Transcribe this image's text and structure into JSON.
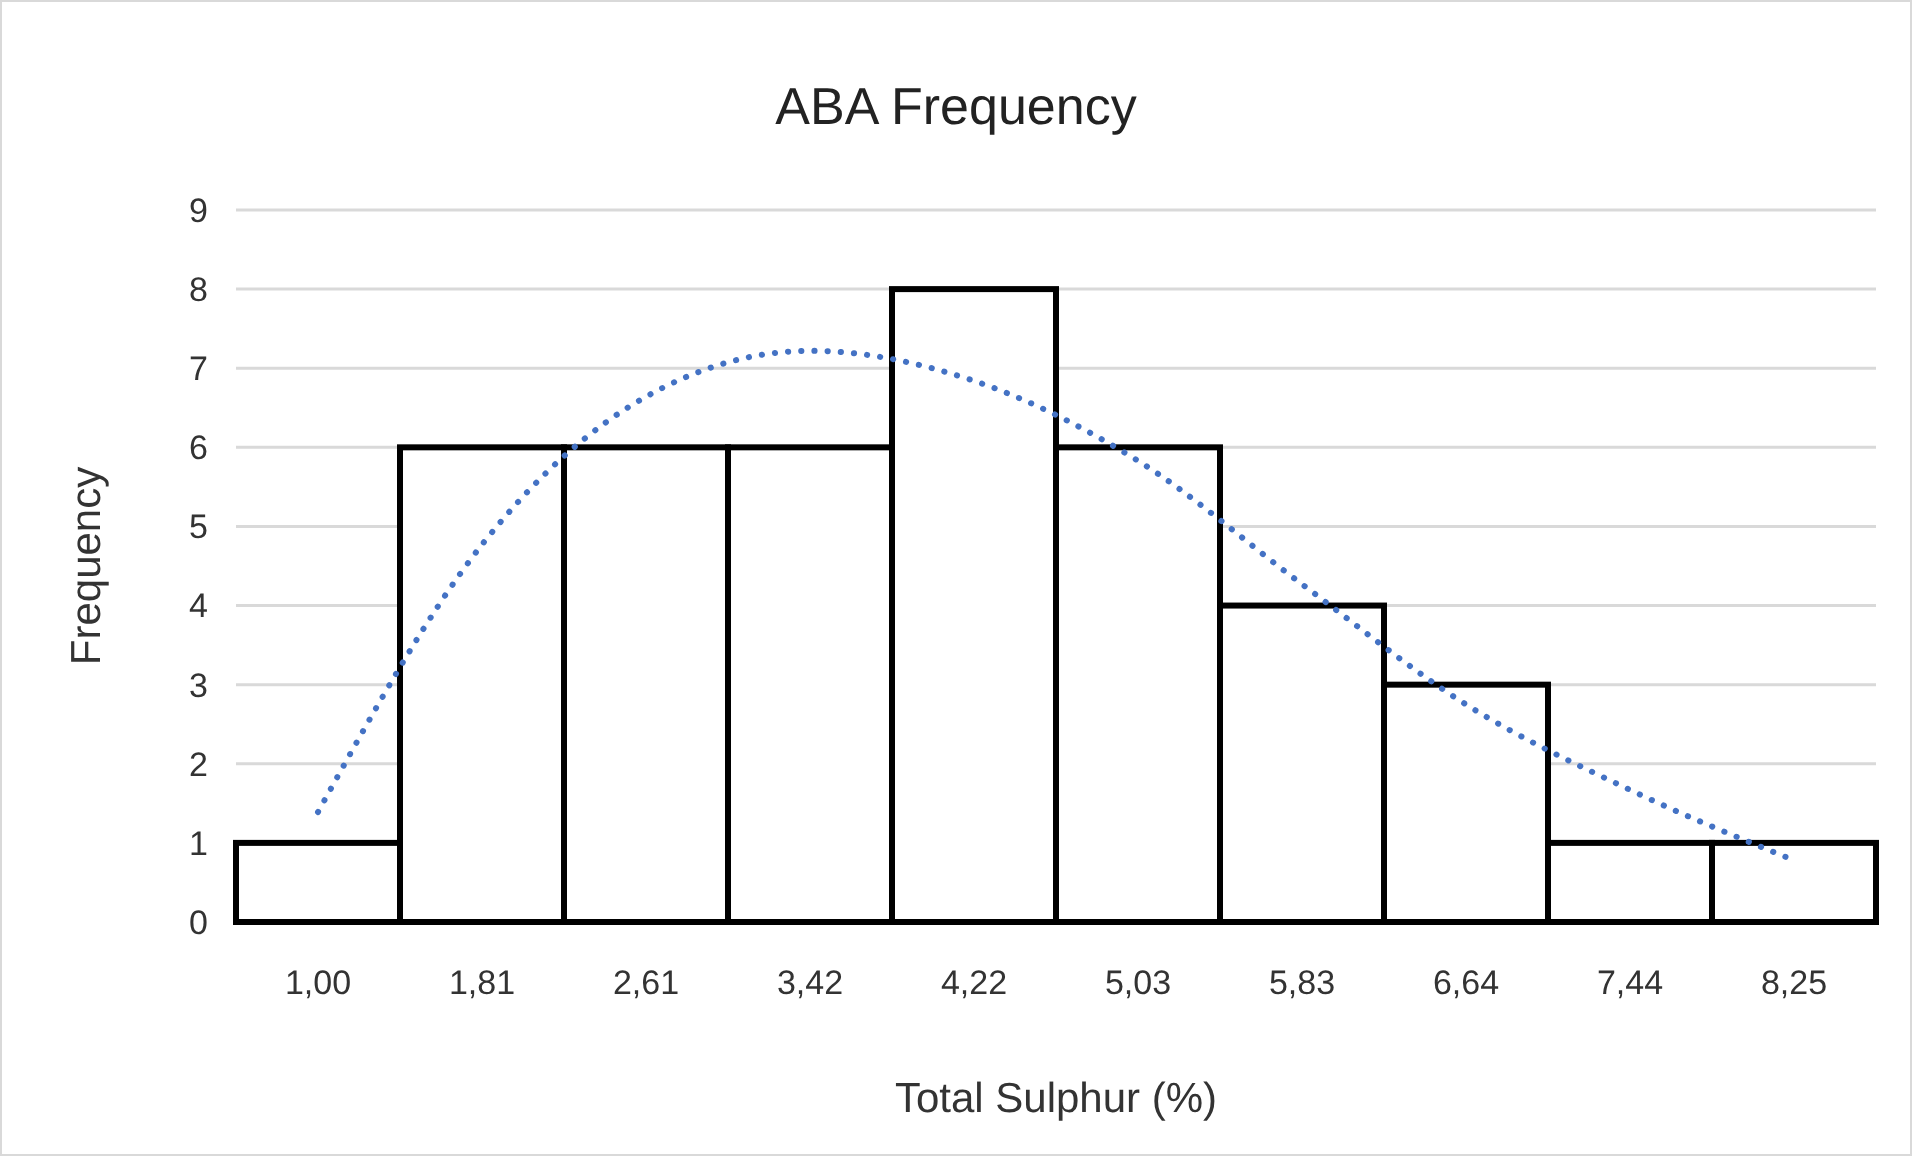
{
  "chart_data": {
    "type": "bar",
    "title": "ABA Frequency",
    "xlabel": "Total Sulphur (%)",
    "ylabel": "Frequency",
    "categories": [
      "1,00",
      "1,81",
      "2,61",
      "3,42",
      "4,22",
      "5,03",
      "5,83",
      "6,64",
      "7,44",
      "8,25"
    ],
    "series": [
      {
        "color": "#000000",
        "values": [
          1,
          6,
          6,
          6,
          8,
          6,
          4,
          3,
          1,
          1
        ]
      },
      {
        "type": "line",
        "color": "#4472c4",
        "line_style": "dotted",
        "marker": "none",
        "values": [
          1.39,
          4.77,
          6.64,
          7.22,
          6.84,
          5.83,
          4.27,
          2.75,
          1.67,
          0.78
        ]
      }
    ],
    "ylim": [
      0,
      9
    ],
    "yticks": [
      0,
      1,
      2,
      3,
      4,
      5,
      6,
      7,
      8,
      9
    ],
    "grid": "y"
  }
}
